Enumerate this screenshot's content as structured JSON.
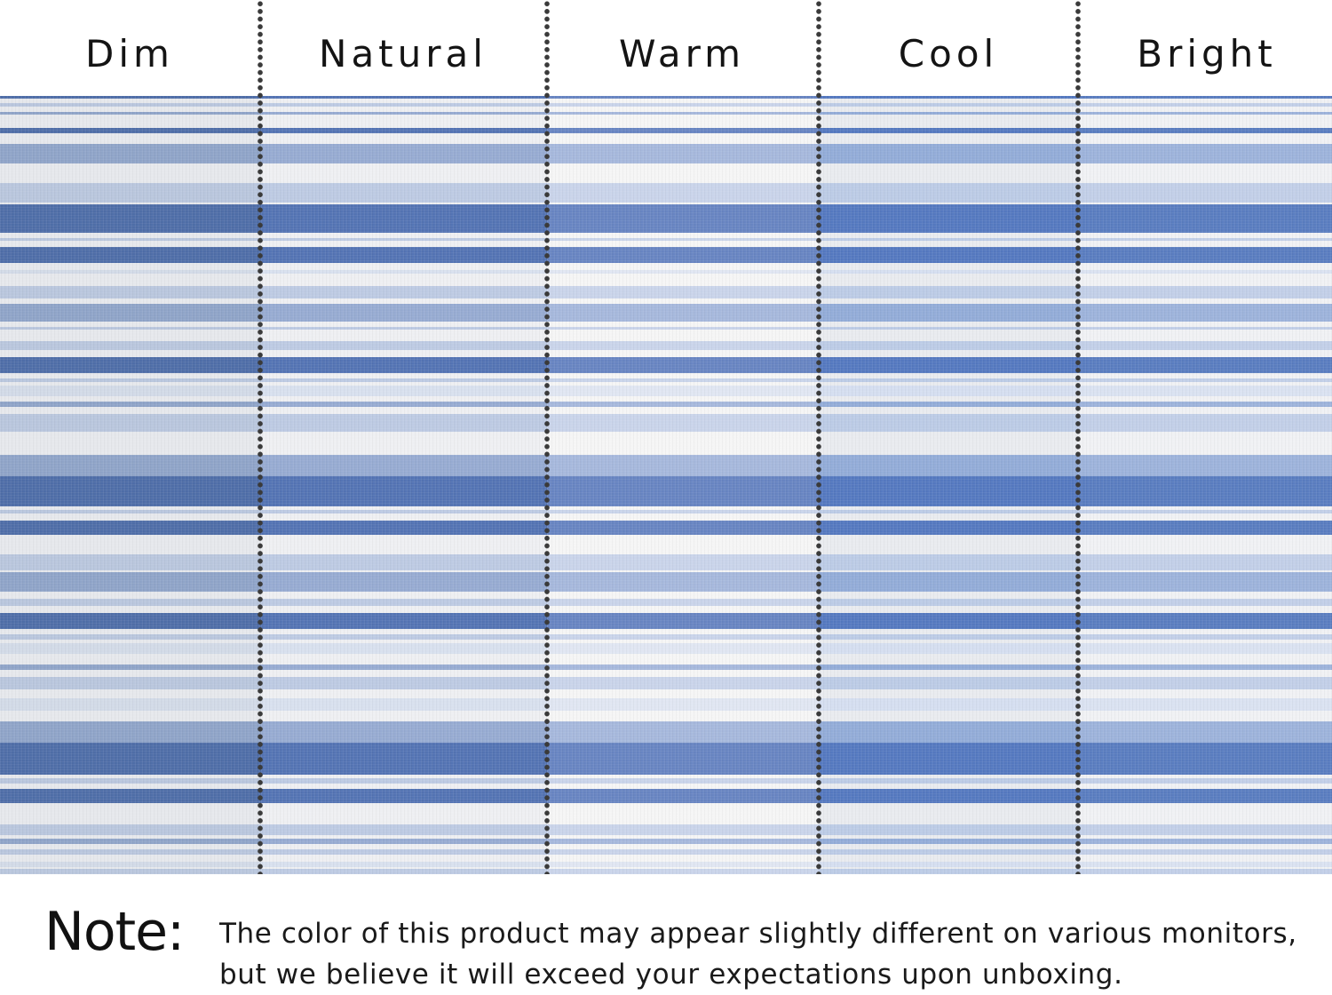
{
  "panels": [
    {
      "label": "Dim",
      "tint": "dim"
    },
    {
      "label": "Natural",
      "tint": "natural"
    },
    {
      "label": "Warm",
      "tint": "warm"
    },
    {
      "label": "Cool",
      "tint": "cool"
    },
    {
      "label": "Bright",
      "tint": "bright"
    }
  ],
  "palettes": {
    "dim": {
      "ground": "#e6e8ec",
      "dark": "#4f6ea8",
      "mid": "#8fa4c8",
      "light": "#b9c6dd",
      "pale": "#d2dae7"
    },
    "natural": {
      "ground": "#eeeff2",
      "dark": "#5474b4",
      "mid": "#97abd2",
      "light": "#bdcae3",
      "pale": "#d8e0ee"
    },
    "warm": {
      "ground": "#f5f5f5",
      "dark": "#6885c2",
      "mid": "#a6b8dc",
      "light": "#c9d4ea",
      "pale": "#e0e6f2"
    },
    "cool": {
      "ground": "#e9ebef",
      "dark": "#5579c0",
      "mid": "#93acd8",
      "light": "#bccbe6",
      "pale": "#d5def0"
    },
    "bright": {
      "ground": "#f0f1f4",
      "dark": "#5a7dc0",
      "mid": "#9db3db",
      "light": "#c2cfe8",
      "pale": "#dae2f1"
    }
  },
  "note": {
    "label": "Note:",
    "line1": "The color of this product may appear slightly different on various monitors,",
    "line2": "but we believe it will exceed your expectations upon unboxing."
  }
}
